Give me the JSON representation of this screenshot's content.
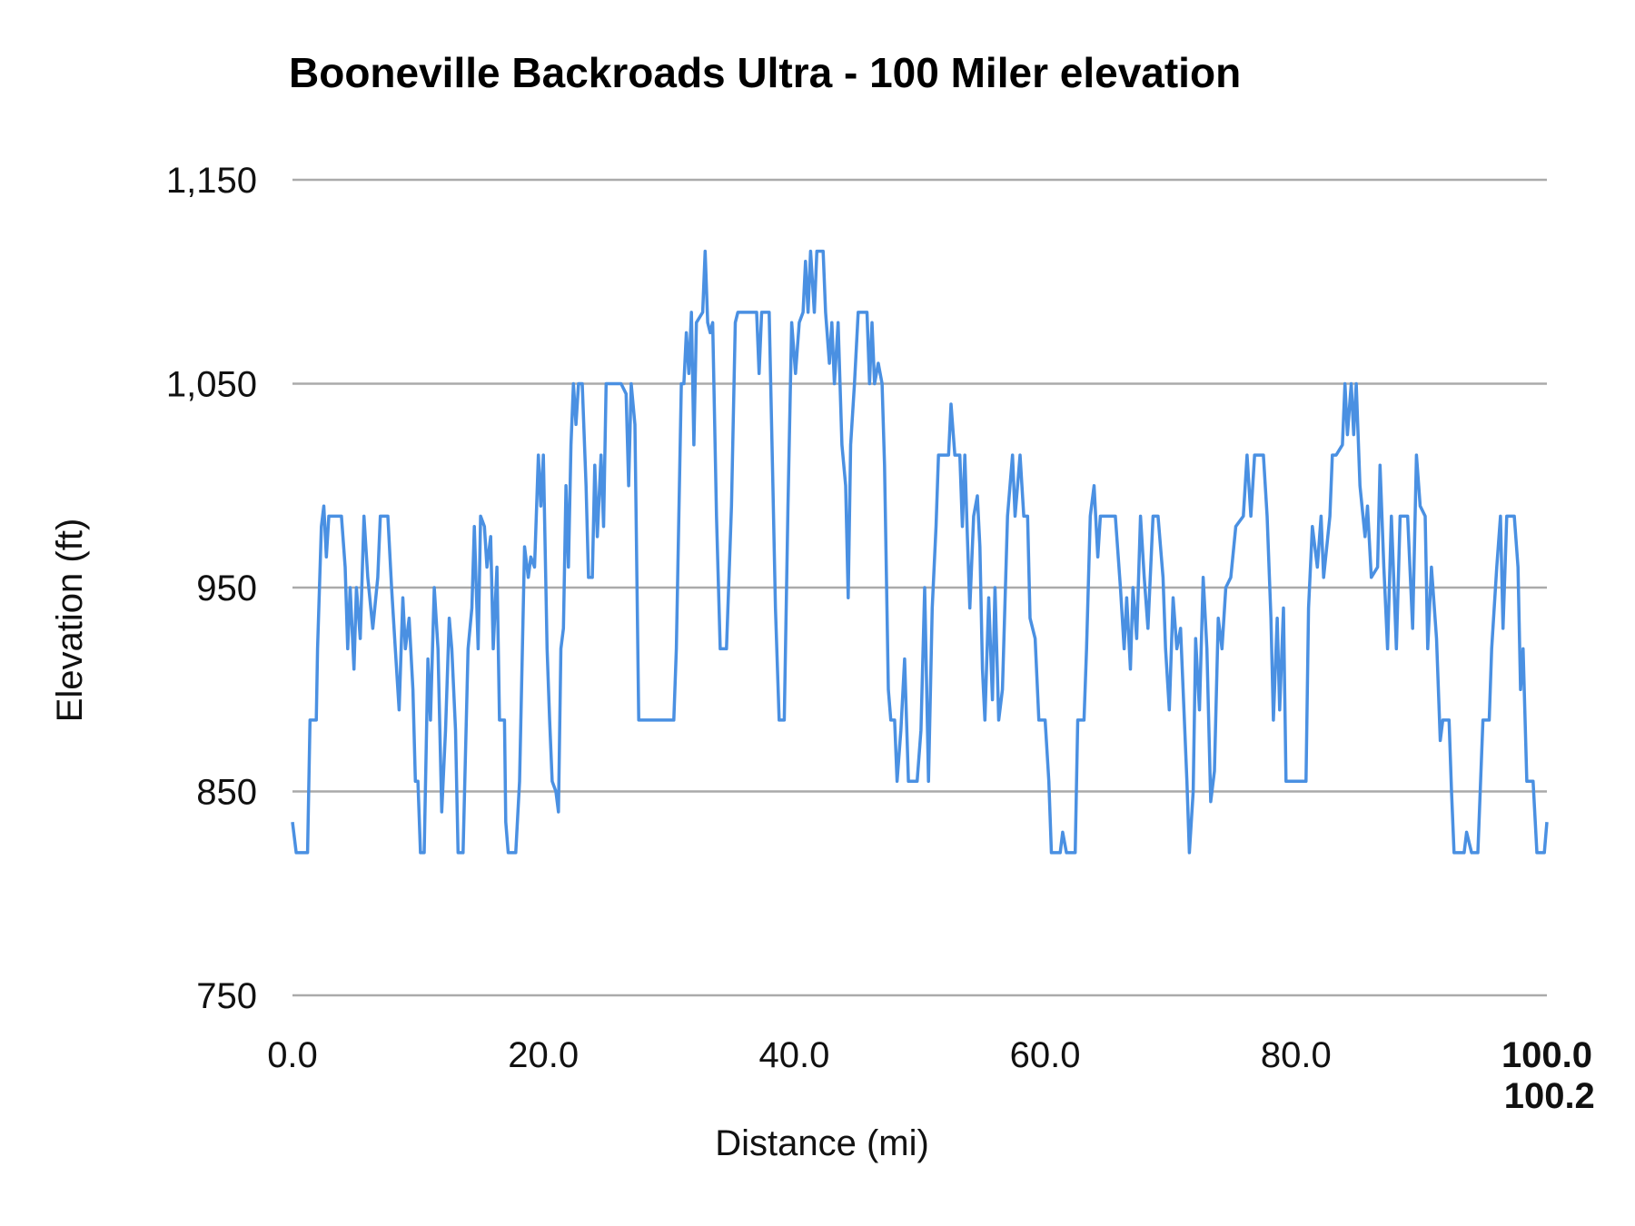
{
  "chart_data": {
    "type": "line",
    "title": "Booneville Backroads Ultra - 100 Miler elevation",
    "xlabel": "Distance (mi)",
    "ylabel": "Elevation (ft)",
    "xlim": [
      0,
      100.2
    ],
    "ylim": [
      750,
      1150
    ],
    "x_ticks": [
      "0.0",
      "20.0",
      "40.0",
      "60.0",
      "80.0",
      "100.0",
      "100.2"
    ],
    "x_tick_values": [
      0,
      20,
      40,
      60,
      80,
      100,
      100.2
    ],
    "y_ticks": [
      "750",
      "850",
      "950",
      "1,050",
      "1,150"
    ],
    "y_tick_values": [
      750,
      850,
      950,
      1050,
      1150
    ],
    "grid": "horizontal",
    "legend": "none",
    "line_color": "#4a90e2",
    "grid_color": "#aaaaaa",
    "series": [
      {
        "x": [
          0.0,
          0.3,
          1.2,
          1.4,
          1.9,
          2.0,
          2.3,
          2.5,
          2.7,
          2.9,
          3.9,
          4.2,
          4.4,
          4.6,
          4.9,
          5.1,
          5.4,
          5.7,
          6.0,
          6.4,
          6.8,
          7.0,
          7.6,
          7.9,
          8.2,
          8.5,
          8.8,
          9.0,
          9.3,
          9.6,
          9.8,
          10.0,
          10.2,
          10.5,
          10.8,
          11.0,
          11.3,
          11.6,
          11.9,
          12.2,
          12.5,
          12.7,
          13.0,
          13.2,
          13.6,
          14.0,
          14.3,
          14.5,
          14.8,
          15.0,
          15.3,
          15.5,
          15.8,
          16.0,
          16.3,
          16.5,
          16.9,
          17.0,
          17.2,
          17.8,
          18.1,
          18.5,
          18.8,
          19.0,
          19.3,
          19.6,
          19.8,
          20.0,
          20.3,
          20.5,
          20.7,
          21.0,
          21.2,
          21.4,
          21.6,
          21.8,
          22.0,
          22.2,
          22.4,
          22.6,
          22.8,
          23.1,
          23.4,
          23.6,
          23.9,
          24.1,
          24.3,
          24.6,
          24.8,
          25.0,
          25.3,
          26.2,
          26.6,
          26.8,
          27.0,
          27.3,
          27.6,
          30.4,
          30.6,
          31.0,
          31.2,
          31.4,
          31.6,
          31.8,
          32.0,
          32.2,
          32.7,
          32.9,
          33.1,
          33.3,
          33.5,
          33.8,
          34.1,
          34.6,
          35.0,
          35.3,
          35.5,
          37.0,
          37.2,
          37.4,
          38.0,
          38.3,
          38.5,
          38.8,
          39.2,
          39.5,
          39.8,
          40.1,
          40.4,
          40.7,
          40.9,
          41.1,
          41.3,
          41.6,
          41.8,
          42.3,
          42.5,
          42.8,
          43.0,
          43.2,
          43.5,
          43.8,
          44.1,
          44.3,
          44.5,
          44.8,
          45.1,
          45.8,
          46.0,
          46.2,
          46.4,
          46.7,
          47.0,
          47.2,
          47.5,
          47.7,
          48.0,
          48.2,
          48.5,
          48.8,
          49.1,
          49.8,
          50.1,
          50.4,
          50.7,
          51.0,
          51.3,
          51.5,
          52.3,
          52.5,
          52.8,
          53.2,
          53.4,
          53.6,
          53.8,
          54.0,
          54.3,
          54.6,
          54.8,
          55.0,
          55.2,
          55.5,
          55.8,
          56.0,
          56.3,
          56.6,
          57.0,
          57.4,
          57.6,
          58.0,
          58.3,
          58.6,
          58.8,
          59.2,
          59.5,
          60.0,
          60.3,
          60.5,
          61.2,
          61.4,
          61.7,
          62.4,
          62.6,
          63.1,
          63.3,
          63.6,
          63.9,
          64.2,
          64.4,
          65.6,
          66.0,
          66.3,
          66.5,
          66.8,
          67.0,
          67.3,
          67.6,
          67.9,
          68.2,
          68.6,
          69.0,
          69.4,
          69.6,
          69.9,
          70.2,
          70.5,
          70.8,
          71.0,
          71.3,
          71.5,
          71.8,
          72.0,
          72.3,
          72.6,
          72.9,
          73.2,
          73.5,
          73.8,
          74.1,
          74.4,
          74.8,
          75.2,
          75.8,
          76.1,
          76.4,
          76.7,
          77.4,
          77.7,
          78.0,
          78.2,
          78.5,
          78.7,
          79.0,
          79.2,
          80.8,
          81.0,
          81.3,
          81.7,
          82.0,
          82.2,
          82.7,
          82.9,
          83.2,
          83.7,
          83.9,
          84.1,
          84.4,
          84.6,
          84.8,
          85.1,
          85.5,
          85.7,
          86.0,
          86.5,
          86.7,
          87.0,
          87.3,
          87.6,
          88.0,
          88.3,
          88.9,
          89.3,
          89.6,
          89.9,
          90.3,
          90.5,
          90.8,
          91.2,
          91.5,
          91.7,
          92.2,
          92.4,
          92.6,
          93.4,
          93.6,
          94.0,
          94.5,
          94.9,
          95.4,
          95.6,
          96.0,
          96.3,
          96.5,
          96.8,
          97.4,
          97.7,
          97.9,
          98.1,
          98.4,
          98.9,
          99.2,
          99.8,
          100.0
        ],
        "y": [
          835,
          820,
          820,
          885,
          885,
          920,
          980,
          990,
          965,
          985,
          985,
          960,
          920,
          950,
          910,
          950,
          925,
          985,
          955,
          930,
          955,
          985,
          985,
          950,
          920,
          890,
          945,
          920,
          935,
          900,
          855,
          855,
          820,
          820,
          915,
          885,
          950,
          920,
          840,
          880,
          935,
          920,
          880,
          820,
          820,
          920,
          940,
          980,
          920,
          985,
          980,
          960,
          975,
          920,
          960,
          885,
          885,
          835,
          820,
          820,
          855,
          970,
          955,
          965,
          960,
          1015,
          990,
          1015,
          920,
          885,
          855,
          850,
          840,
          920,
          930,
          1000,
          960,
          1020,
          1050,
          1030,
          1050,
          1050,
          1000,
          955,
          955,
          1010,
          975,
          1015,
          980,
          1050,
          1050,
          1050,
          1045,
          1000,
          1050,
          1030,
          885,
          885,
          920,
          1050,
          1050,
          1075,
          1055,
          1085,
          1020,
          1080,
          1085,
          1115,
          1080,
          1075,
          1080,
          985,
          920,
          920,
          990,
          1080,
          1085,
          1085,
          1055,
          1085,
          1085,
          1000,
          940,
          885,
          885,
          990,
          1080,
          1055,
          1080,
          1085,
          1110,
          1085,
          1115,
          1085,
          1115,
          1115,
          1085,
          1060,
          1080,
          1050,
          1080,
          1020,
          1000,
          945,
          1020,
          1050,
          1085,
          1085,
          1050,
          1080,
          1050,
          1060,
          1050,
          1010,
          900,
          885,
          885,
          855,
          880,
          915,
          855,
          855,
          880,
          950,
          855,
          940,
          980,
          1015,
          1015,
          1040,
          1015,
          1015,
          980,
          1015,
          975,
          940,
          985,
          995,
          970,
          910,
          885,
          945,
          895,
          950,
          885,
          900,
          985,
          1015,
          985,
          1015,
          985,
          985,
          935,
          925,
          885,
          885,
          855,
          820,
          820,
          830,
          820,
          820,
          885,
          885,
          920,
          985,
          1000,
          965,
          985,
          985,
          950,
          920,
          945,
          910,
          950,
          925,
          985,
          955,
          930,
          985,
          985,
          955,
          920,
          890,
          945,
          920,
          930,
          900,
          855,
          820,
          850,
          925,
          890,
          955,
          920,
          845,
          860,
          935,
          920,
          950,
          955,
          980,
          985,
          1015,
          985,
          1015,
          1015,
          985,
          935,
          885,
          935,
          890,
          940,
          855,
          855,
          940,
          980,
          960,
          985,
          955,
          985,
          1015,
          1015,
          1020,
          1050,
          1025,
          1050,
          1025,
          1050,
          1000,
          975,
          990,
          955,
          960,
          1010,
          960,
          920,
          985,
          920,
          985,
          985,
          930,
          1015,
          990,
          985,
          920,
          960,
          925,
          875,
          885,
          885,
          850,
          820,
          820,
          830,
          820,
          820,
          885,
          885,
          920,
          960,
          985,
          930,
          985,
          985,
          960,
          900,
          920,
          855,
          855,
          820,
          820,
          835
        ]
      }
    ]
  }
}
